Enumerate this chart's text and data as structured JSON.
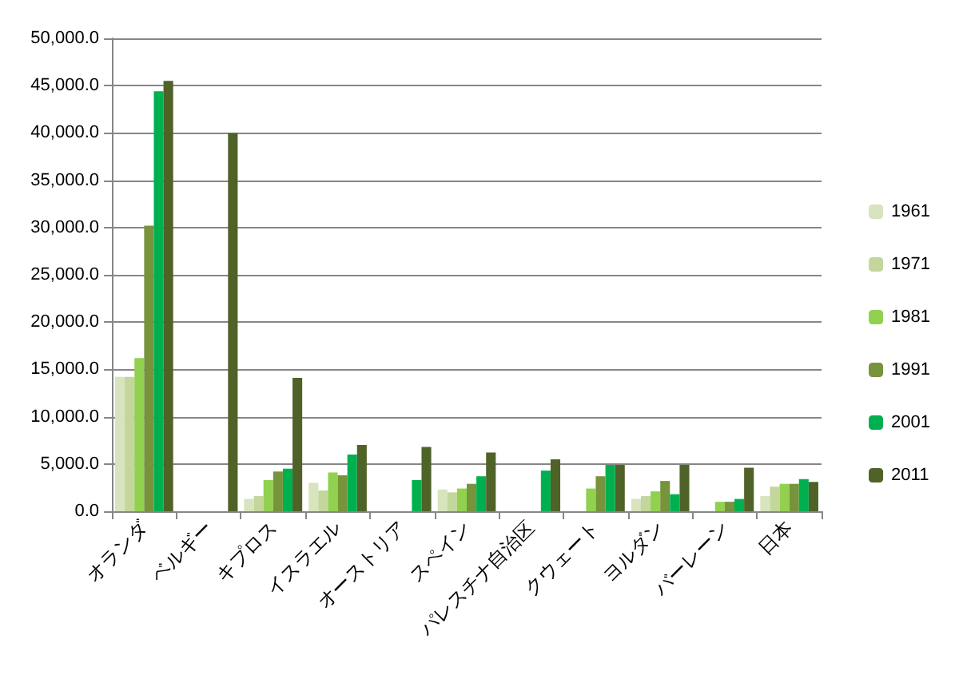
{
  "chart_data": {
    "type": "bar",
    "categories": [
      "オランダ",
      "ベルギー",
      "キプロス",
      "イスラエル",
      "オーストリア",
      "スペイン",
      "パレスチナ自治区",
      "クウェート",
      "ヨルダン",
      "バーレーン",
      "日本"
    ],
    "series": [
      {
        "name": "1961",
        "color": "#d7e4bd",
        "values": [
          14200,
          null,
          1300,
          3000,
          null,
          2300,
          null,
          null,
          1300,
          null,
          1600
        ]
      },
      {
        "name": "1971",
        "color": "#c3d69b",
        "values": [
          14200,
          null,
          1600,
          2200,
          null,
          2000,
          null,
          null,
          1600,
          null,
          2600
        ]
      },
      {
        "name": "1981",
        "color": "#92d050",
        "values": [
          16200,
          null,
          3300,
          4100,
          null,
          2400,
          null,
          2400,
          2100,
          1000,
          2900
        ]
      },
      {
        "name": "1991",
        "color": "#77933c",
        "values": [
          30200,
          null,
          4200,
          3800,
          null,
          2900,
          null,
          3700,
          3200,
          1000,
          2900
        ]
      },
      {
        "name": "2001",
        "color": "#00b050",
        "values": [
          44400,
          null,
          4500,
          6000,
          3300,
          3700,
          4300,
          4900,
          1800,
          1300,
          3400
        ]
      },
      {
        "name": "2011",
        "color": "#4f6228",
        "values": [
          45500,
          40000,
          14100,
          7000,
          6800,
          6200,
          5500,
          4900,
          4900,
          4600,
          3100
        ]
      }
    ],
    "ylim": [
      0,
      50000
    ],
    "yticks": [
      {
        "value": 0,
        "label": "0.0"
      },
      {
        "value": 5000,
        "label": "5,000.0"
      },
      {
        "value": 10000,
        "label": "10,000.0"
      },
      {
        "value": 15000,
        "label": "15,000.0"
      },
      {
        "value": 20000,
        "label": "20,000.0"
      },
      {
        "value": 25000,
        "label": "25,000.0"
      },
      {
        "value": 30000,
        "label": "30,000.0"
      },
      {
        "value": 35000,
        "label": "35,000.0"
      },
      {
        "value": 40000,
        "label": "40,000.0"
      },
      {
        "value": 45000,
        "label": "45,000.0"
      },
      {
        "value": 50000,
        "label": "50,000.0"
      }
    ],
    "grid": "y",
    "legend": "right"
  }
}
